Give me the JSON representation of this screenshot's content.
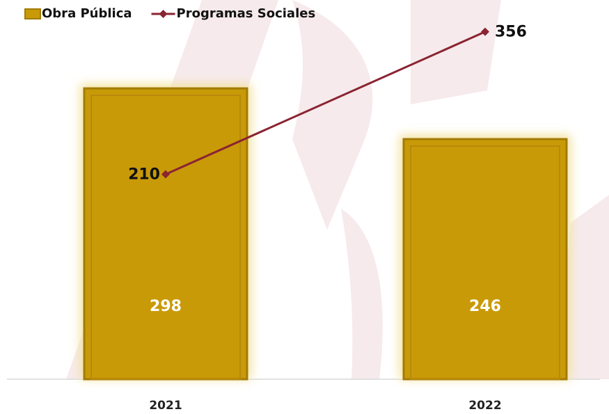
{
  "chart_data": {
    "type": "bar",
    "categories": [
      "2021",
      "2022"
    ],
    "series": [
      {
        "name": "Obra Pública",
        "type": "bar",
        "color": "#c99a08",
        "values": [
          298,
          246
        ]
      },
      {
        "name": "Programas Sociales",
        "type": "line",
        "color": "#8a2432",
        "values": [
          210,
          356
        ]
      }
    ],
    "ylim": [
      0,
      380
    ],
    "legend": "top-left"
  }
}
